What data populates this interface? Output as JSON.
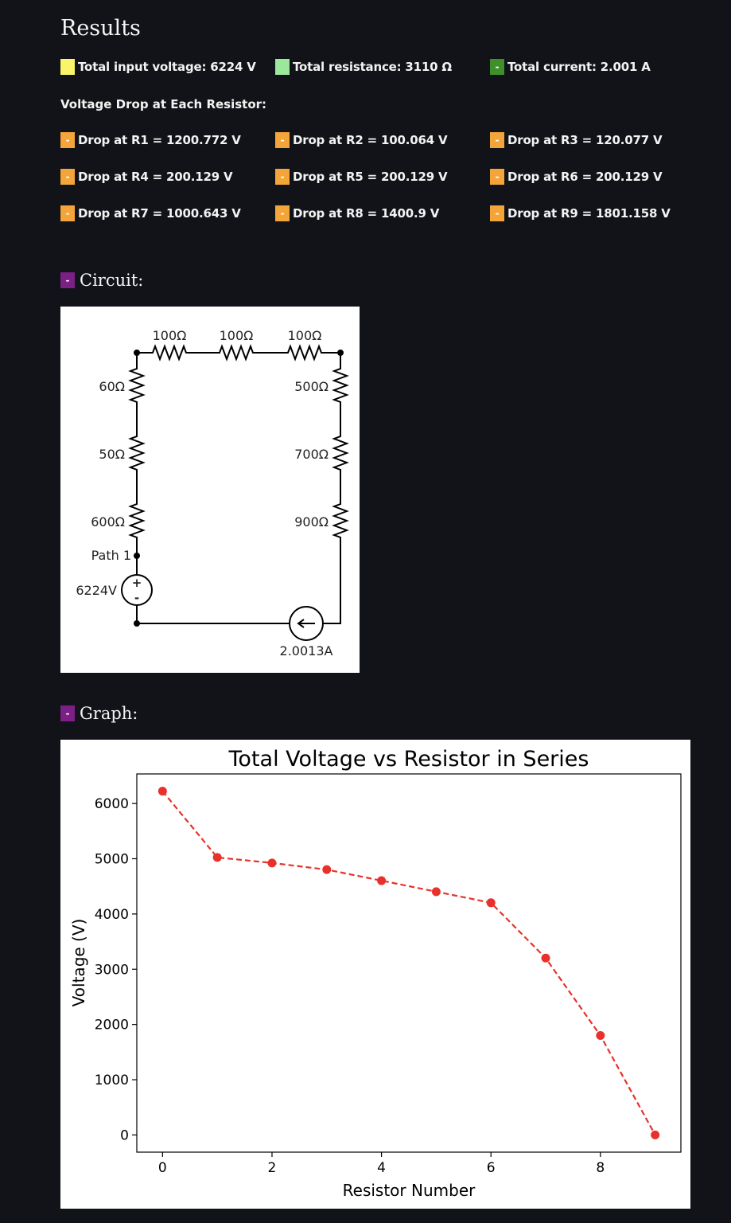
{
  "results": {
    "heading": "Results",
    "summary": [
      {
        "label": "Total input voltage: 6224 V",
        "color": "#f9f56a"
      },
      {
        "label": "Total resistance: 3110 Ω",
        "color": "#9be79b"
      },
      {
        "label": "Total current: 2.001 A",
        "color": "#3f8f2a"
      }
    ],
    "voltage_drop_title": "Voltage Drop at Each Resistor:",
    "drops": [
      "Drop at R1 = 1200.772 V",
      "Drop at R2 = 100.064 V",
      "Drop at R3 = 120.077 V",
      "Drop at R4 = 200.129 V",
      "Drop at R5 = 200.129 V",
      "Drop at R6 = 200.129 V",
      "Drop at R7 = 1000.643 V",
      "Drop at R8 = 1400.9 V",
      "Drop at R9 = 1801.158 V"
    ],
    "badge_glyph": "-"
  },
  "circuit": {
    "title": "Circuit:",
    "top_resistors": [
      "100Ω",
      "100Ω",
      "100Ω"
    ],
    "left_resistors": [
      "60Ω",
      "50Ω",
      "600Ω"
    ],
    "right_resistors": [
      "500Ω",
      "700Ω",
      "900Ω"
    ],
    "path_label": "Path 1",
    "source_voltage": "6224V",
    "source_current": "2.0013A",
    "plus_sign": "+",
    "minus_sign": "-"
  },
  "graph": {
    "title": "Graph:"
  },
  "chart_data": {
    "type": "line",
    "title": "Total Voltage vs Resistor in Series",
    "xlabel": "Resistor Number",
    "ylabel": "Voltage (V)",
    "x": [
      0,
      1,
      2,
      3,
      4,
      5,
      6,
      7,
      8,
      9
    ],
    "y": [
      6224,
      5023,
      4923,
      4803,
      4603,
      4403,
      4203,
      3202,
      1801,
      0
    ],
    "xticks": [
      0,
      2,
      4,
      6,
      8
    ],
    "yticks": [
      0,
      1000,
      2000,
      3000,
      4000,
      5000,
      6000
    ],
    "xlim": [
      -0.47,
      9.47
    ],
    "ylim": [
      -311,
      6535
    ],
    "line_style": "dashed",
    "marker": "circle",
    "color": "#e8312a",
    "grid": false
  }
}
